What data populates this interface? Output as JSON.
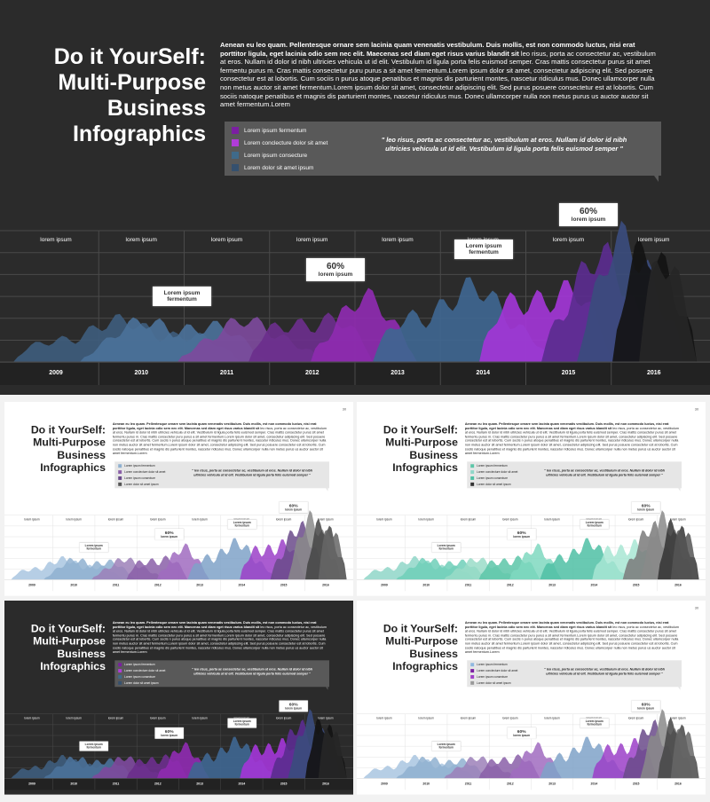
{
  "slide": {
    "title": [
      "Do it YourSelf:",
      "Multi-Purpose",
      "Business",
      "Infographics"
    ],
    "intro_bold": "Aenean eu leo quam. Pellentesque ornare sem lacinia quam venenatis vestibulum. Duis mollis, est non commodo luctus, nisi erat porttitor ligula, eget lacinia odio sem nec elit. Maecenas sed diam eget risus varius blandit sit",
    "intro": "leo risus, porta ac consectetur ac, vestibulum at eros. Nullam id dolor id nibh ultricies vehicula ut id elit. Vestibulum id ligula porta felis euismod semper. Cras mattis consectetur purus sit amet fermentu purus m. Cras mattis consectetur puru purus a sit amet fermentum.Lorem ipsum dolor sit amet, consectetur adipiscing elit. Sed posuere consectetur est at lobortis. Cum sociis n purus atoque penatibus et magnis dis parturient montes, nascetur ridiculus mus. Donec ullamcorper nulla non metus auctor sit amet fermentum.Lorem ipsum dolor sit amet, consectetur adipiscing elit. Sed purus posuere consectetur est at lobortis. Cum sociis natoque penatibus et magnis dis parturient montes, nascetur ridiculus mus. Donec ullamcorper nulla non metus purus us auctor auctor sit amet fermentum.Lorem",
    "legend": [
      "Lorem ipsum fermentum",
      "Lorem conclecture dolor sit amet",
      "Lorem ipsum consecture",
      "Lorem dolor sit amet ipsum"
    ],
    "quote": "\" leo risus, porta ac consectetur ac, vestibulum at eros. Nullam id dolor id nibh ultricies vehicula ut id elit. Vestibulum id ligula porta felis euismod semper \"",
    "columns": [
      "lorem ipsum",
      "lorem ipsum",
      "lorem ipsum",
      "lorem ipsum",
      "lorem ipsum",
      "lorem ipsum",
      "lorem ipsum",
      "lorem ipsum"
    ],
    "years": [
      "2009",
      "2010",
      "2011",
      "2012",
      "2013",
      "2014",
      "2015",
      "2016"
    ],
    "callouts": [
      {
        "text": "Lorem ipsum fermentum"
      },
      {
        "value": "60%",
        "text": "lorem ipsum"
      },
      {
        "text": "Lorem ipsum fermentum"
      },
      {
        "value": "60%",
        "text": "lorem ipsum"
      }
    ],
    "page_number": "30"
  }
}
